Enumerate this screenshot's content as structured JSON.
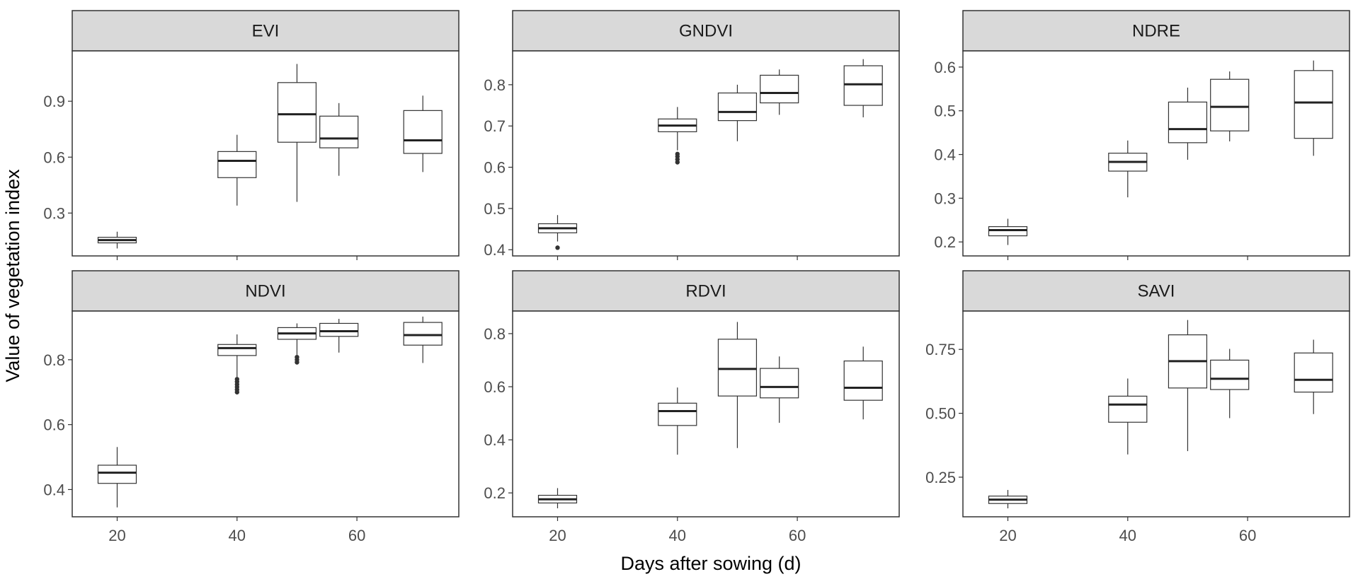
{
  "chart_data": {
    "type": "boxplot-facets",
    "xlabel": "Days after sowing (d)",
    "ylabel": "Value of vegetation index",
    "x_ticks": [
      20,
      40,
      60
    ],
    "x_range": [
      12.5,
      77
    ],
    "colors": {
      "strip_fill": "#d9d9d9",
      "box_stroke": "#333333",
      "median": "#222222",
      "frame": "#333333"
    },
    "panels": [
      {
        "title": "EVI",
        "ylim": [
          0.07,
          1.17
        ],
        "y_ticks": [
          0.3,
          0.6,
          0.9
        ],
        "y_tick_labels": [
          "0.3",
          "0.6",
          "0.9"
        ],
        "boxes": [
          {
            "day": 20,
            "min": 0.11,
            "q1": 0.14,
            "median": 0.155,
            "q3": 0.17,
            "max": 0.2,
            "outliers": []
          },
          {
            "day": 40,
            "min": 0.34,
            "q1": 0.49,
            "median": 0.58,
            "q3": 0.63,
            "max": 0.72,
            "outliers": []
          },
          {
            "day": 50,
            "min": 0.36,
            "q1": 0.68,
            "median": 0.83,
            "q3": 1.0,
            "max": 1.1,
            "outliers": []
          },
          {
            "day": 57,
            "min": 0.5,
            "q1": 0.65,
            "median": 0.7,
            "q3": 0.82,
            "max": 0.89,
            "outliers": []
          },
          {
            "day": 71,
            "min": 0.52,
            "q1": 0.62,
            "median": 0.69,
            "q3": 0.85,
            "max": 0.93,
            "outliers": []
          }
        ]
      },
      {
        "title": "GNDVI",
        "ylim": [
          0.385,
          0.882
        ],
        "y_ticks": [
          0.4,
          0.5,
          0.6,
          0.7,
          0.8
        ],
        "y_tick_labels": [
          "0.4",
          "0.5",
          "0.6",
          "0.7",
          "0.8"
        ],
        "boxes": [
          {
            "day": 20,
            "min": 0.42,
            "q1": 0.441,
            "median": 0.452,
            "q3": 0.463,
            "max": 0.484,
            "outliers": [
              0.405
            ]
          },
          {
            "day": 40,
            "min": 0.641,
            "q1": 0.686,
            "median": 0.701,
            "q3": 0.717,
            "max": 0.746,
            "outliers": [
              0.612,
              0.619,
              0.626,
              0.632
            ]
          },
          {
            "day": 50,
            "min": 0.663,
            "q1": 0.713,
            "median": 0.734,
            "q3": 0.78,
            "max": 0.8,
            "outliers": []
          },
          {
            "day": 57,
            "min": 0.727,
            "q1": 0.756,
            "median": 0.78,
            "q3": 0.823,
            "max": 0.837,
            "outliers": []
          },
          {
            "day": 71,
            "min": 0.721,
            "q1": 0.75,
            "median": 0.801,
            "q3": 0.846,
            "max": 0.862,
            "outliers": []
          }
        ]
      },
      {
        "title": "NDRE",
        "ylim": [
          0.168,
          0.637
        ],
        "y_ticks": [
          0.2,
          0.3,
          0.4,
          0.5,
          0.6
        ],
        "y_tick_labels": [
          "0.2",
          "0.3",
          "0.4",
          "0.5",
          "0.6"
        ],
        "boxes": [
          {
            "day": 20,
            "min": 0.193,
            "q1": 0.214,
            "median": 0.227,
            "q3": 0.235,
            "max": 0.253,
            "outliers": []
          },
          {
            "day": 40,
            "min": 0.302,
            "q1": 0.362,
            "median": 0.383,
            "q3": 0.403,
            "max": 0.432,
            "outliers": []
          },
          {
            "day": 50,
            "min": 0.388,
            "q1": 0.427,
            "median": 0.458,
            "q3": 0.52,
            "max": 0.553,
            "outliers": []
          },
          {
            "day": 57,
            "min": 0.43,
            "q1": 0.454,
            "median": 0.509,
            "q3": 0.572,
            "max": 0.59,
            "outliers": []
          },
          {
            "day": 71,
            "min": 0.397,
            "q1": 0.437,
            "median": 0.519,
            "q3": 0.592,
            "max": 0.615,
            "outliers": []
          }
        ]
      },
      {
        "title": "NDVI",
        "ylim": [
          0.316,
          0.95
        ],
        "y_ticks": [
          0.4,
          0.6,
          0.8
        ],
        "y_tick_labels": [
          "0.4",
          "0.6",
          "0.8"
        ],
        "boxes": [
          {
            "day": 20,
            "min": 0.345,
            "q1": 0.419,
            "median": 0.452,
            "q3": 0.475,
            "max": 0.531,
            "outliers": []
          },
          {
            "day": 40,
            "min": 0.745,
            "q1": 0.813,
            "median": 0.836,
            "q3": 0.847,
            "max": 0.878,
            "outliers": [
              0.7,
              0.708,
              0.716,
              0.724,
              0.732,
              0.74
            ]
          },
          {
            "day": 50,
            "min": 0.815,
            "q1": 0.863,
            "median": 0.881,
            "q3": 0.899,
            "max": 0.912,
            "outliers": [
              0.792,
              0.8,
              0.808
            ]
          },
          {
            "day": 57,
            "min": 0.822,
            "q1": 0.872,
            "median": 0.888,
            "q3": 0.912,
            "max": 0.926,
            "outliers": []
          },
          {
            "day": 71,
            "min": 0.79,
            "q1": 0.845,
            "median": 0.876,
            "q3": 0.915,
            "max": 0.933,
            "outliers": []
          }
        ]
      },
      {
        "title": "RDVI",
        "ylim": [
          0.11,
          0.885
        ],
        "y_ticks": [
          0.2,
          0.4,
          0.6,
          0.8
        ],
        "y_tick_labels": [
          "0.2",
          "0.4",
          "0.6",
          "0.8"
        ],
        "boxes": [
          {
            "day": 20,
            "min": 0.142,
            "q1": 0.162,
            "median": 0.176,
            "q3": 0.191,
            "max": 0.218,
            "outliers": []
          },
          {
            "day": 40,
            "min": 0.344,
            "q1": 0.454,
            "median": 0.508,
            "q3": 0.538,
            "max": 0.597,
            "outliers": []
          },
          {
            "day": 50,
            "min": 0.369,
            "q1": 0.565,
            "median": 0.667,
            "q3": 0.779,
            "max": 0.844,
            "outliers": []
          },
          {
            "day": 57,
            "min": 0.464,
            "q1": 0.558,
            "median": 0.599,
            "q3": 0.669,
            "max": 0.714,
            "outliers": []
          },
          {
            "day": 71,
            "min": 0.477,
            "q1": 0.549,
            "median": 0.596,
            "q3": 0.697,
            "max": 0.751,
            "outliers": []
          }
        ]
      },
      {
        "title": "SAVI",
        "ylim": [
          0.095,
          0.9
        ],
        "y_ticks": [
          0.25,
          0.5,
          0.75
        ],
        "y_tick_labels": [
          "0.25",
          "0.50",
          "0.75"
        ],
        "boxes": [
          {
            "day": 20,
            "min": 0.128,
            "q1": 0.147,
            "median": 0.162,
            "q3": 0.176,
            "max": 0.2,
            "outliers": []
          },
          {
            "day": 40,
            "min": 0.339,
            "q1": 0.465,
            "median": 0.534,
            "q3": 0.567,
            "max": 0.636,
            "outliers": []
          },
          {
            "day": 50,
            "min": 0.352,
            "q1": 0.599,
            "median": 0.704,
            "q3": 0.807,
            "max": 0.865,
            "outliers": []
          },
          {
            "day": 57,
            "min": 0.481,
            "q1": 0.593,
            "median": 0.635,
            "q3": 0.708,
            "max": 0.752,
            "outliers": []
          },
          {
            "day": 71,
            "min": 0.497,
            "q1": 0.583,
            "median": 0.631,
            "q3": 0.736,
            "max": 0.788,
            "outliers": []
          }
        ]
      }
    ]
  }
}
